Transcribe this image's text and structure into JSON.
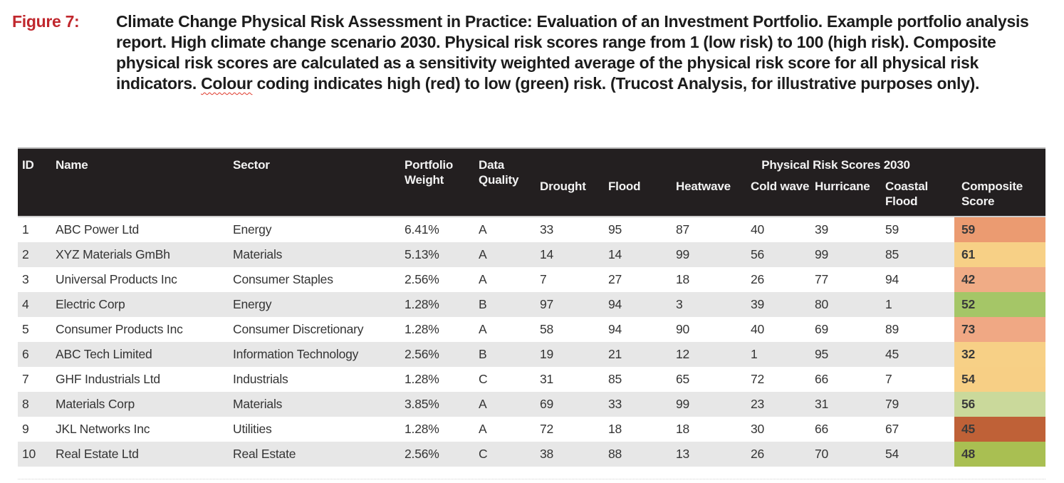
{
  "figure": {
    "label": "Figure 7:",
    "caption_part1": "Climate Change Physical Risk Assessment in Practice: Evaluation of an Investment Portfolio. Example portfolio analysis report. High climate change scenario 2030. Physical risk scores range from 1 (low risk) to 100 (high risk). Composite physical risk scores are calculated as a sensitivity weighted average of the physical risk score for all physical risk indicators. ",
    "caption_misspelled_word": "Colour",
    "caption_part2": " coding indicates high (red) to low (green) risk. (Trucost Analysis, for illustrative purposes only)."
  },
  "table": {
    "group_header": "Physical Risk Scores 2030",
    "columns": [
      "ID",
      "Name",
      "Sector",
      "Portfolio Weight",
      "Data Quality",
      "Drought",
      "Flood",
      "Heatwave",
      "Cold wave",
      "Hurricane",
      "Coastal Flood",
      "Composite Score"
    ],
    "rows": [
      {
        "id": "1",
        "name": "ABC Power Ltd",
        "sector": "Energy",
        "weight": "6.41%",
        "quality": "A",
        "drought": "33",
        "flood": "95",
        "heatwave": "87",
        "cold_wave": "40",
        "hurricane": "39",
        "coastal_flood": "59",
        "composite": "59",
        "composite_color": "#EB9B71"
      },
      {
        "id": "2",
        "name": "XYZ Materials GmBh",
        "sector": "Materials",
        "weight": "5.13%",
        "quality": "A",
        "drought": "14",
        "flood": "14",
        "heatwave": "99",
        "cold_wave": "56",
        "hurricane": "99",
        "coastal_flood": "85",
        "composite": "61",
        "composite_color": "#F7D086"
      },
      {
        "id": "3",
        "name": "Universal Products Inc",
        "sector": "Consumer Staples",
        "weight": "2.56%",
        "quality": "A",
        "drought": "7",
        "flood": "27",
        "heatwave": "18",
        "cold_wave": "26",
        "hurricane": "77",
        "coastal_flood": "94",
        "composite": "42",
        "composite_color": "#F0AC86"
      },
      {
        "id": "4",
        "name": "Electric Corp",
        "sector": "Energy",
        "weight": "1.28%",
        "quality": "B",
        "drought": "97",
        "flood": "94",
        "heatwave": "3",
        "cold_wave": "39",
        "hurricane": "80",
        "coastal_flood": "1",
        "composite": "52",
        "composite_color": "#A5C667"
      },
      {
        "id": "5",
        "name": "Consumer Products Inc",
        "sector": "Consumer Discretionary",
        "weight": "1.28%",
        "quality": "A",
        "drought": "58",
        "flood": "94",
        "heatwave": "90",
        "cold_wave": "40",
        "hurricane": "69",
        "coastal_flood": "89",
        "composite": "73",
        "composite_color": "#F0A884"
      },
      {
        "id": "6",
        "name": "ABC Tech Limited",
        "sector": "Information Technology",
        "weight": "2.56%",
        "quality": "B",
        "drought": "19",
        "flood": "21",
        "heatwave": "12",
        "cold_wave": "1",
        "hurricane": "95",
        "coastal_flood": "45",
        "composite": "32",
        "composite_color": "#F7D086"
      },
      {
        "id": "7",
        "name": "GHF Industrials Ltd",
        "sector": "Industrials",
        "weight": "1.28%",
        "quality": "C",
        "drought": "31",
        "flood": "85",
        "heatwave": "65",
        "cold_wave": "72",
        "hurricane": "66",
        "coastal_flood": "7",
        "composite": "54",
        "composite_color": "#F7CF85"
      },
      {
        "id": "8",
        "name": "Materials Corp",
        "sector": "Materials",
        "weight": "3.85%",
        "quality": "A",
        "drought": "69",
        "flood": "33",
        "heatwave": "99",
        "cold_wave": "23",
        "hurricane": "31",
        "coastal_flood": "79",
        "composite": "56",
        "composite_color": "#CAD99B"
      },
      {
        "id": "9",
        "name": "JKL Networks Inc",
        "sector": "Utilities",
        "weight": "1.28%",
        "quality": "A",
        "drought": "72",
        "flood": "18",
        "heatwave": "18",
        "cold_wave": "30",
        "hurricane": "66",
        "coastal_flood": "67",
        "composite": "45",
        "composite_color": "#BF6137"
      },
      {
        "id": "10",
        "name": "Real Estate Ltd",
        "sector": "Real Estate",
        "weight": "2.56%",
        "quality": "C",
        "drought": "38",
        "flood": "88",
        "heatwave": "13",
        "cold_wave": "26",
        "hurricane": "70",
        "coastal_flood": "54",
        "composite": "48",
        "composite_color": "#A9BF52"
      }
    ]
  },
  "colors": {
    "figure_label": "#c0272d",
    "header_bg": "#231f20",
    "row_alt": "#e7e7e7",
    "spellcheck_underline": "#e0392b"
  }
}
